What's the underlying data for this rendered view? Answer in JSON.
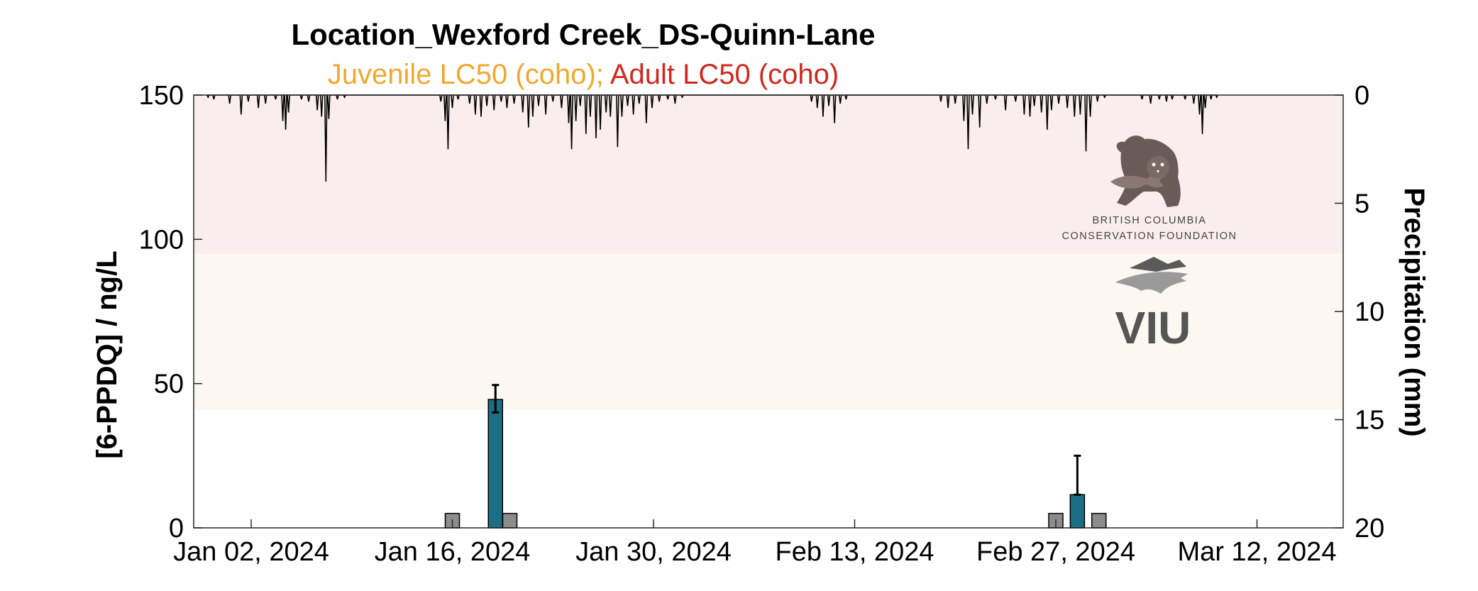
{
  "chart_data": {
    "type": "bar",
    "title": "Location_Wexford Creek_DS-Quinn-Lane",
    "subtitle_parts": [
      {
        "text": "Juvenile LC50 (coho)",
        "color": "#f0a830"
      },
      {
        "text": "; ",
        "color": "#f0a830"
      },
      {
        "text": "Adult LC50 (coho)",
        "color": "#d0281e"
      }
    ],
    "ylabel": "[6-PPDQ] / ng/L",
    "y2label": "Precipitation (mm)",
    "ylim": [
      0,
      150
    ],
    "y2lim": [
      0,
      20
    ],
    "y2_reversed": true,
    "yticks": [
      0,
      50,
      100,
      150
    ],
    "y2ticks": [
      0,
      5,
      10,
      15,
      20
    ],
    "xlim": [
      "2023-12-29",
      "2024-03-18"
    ],
    "xticks": [
      {
        "date": "2024-01-02",
        "label": "Jan 02, 2024"
      },
      {
        "date": "2024-01-16",
        "label": "Jan 16, 2024"
      },
      {
        "date": "2024-01-30",
        "label": "Jan 30, 2024"
      },
      {
        "date": "2024-02-13",
        "label": "Feb 13, 2024"
      },
      {
        "date": "2024-02-27",
        "label": "Feb 27, 2024"
      },
      {
        "date": "2024-03-12",
        "label": "Mar 12, 2024"
      }
    ],
    "bands": [
      {
        "name": "Juvenile LC50 (coho)",
        "from": 41,
        "to": 95,
        "color": "#fcf7f0"
      },
      {
        "name": "Adult LC50 (coho)",
        "from": 95,
        "to": 150,
        "color": "#f9eeed"
      }
    ],
    "bars": [
      {
        "date": "2024-01-16",
        "value": 5,
        "kind": "non-detect",
        "color": "#8c8c8c"
      },
      {
        "date": "2024-01-19",
        "value": 44.5,
        "error_low": 4.5,
        "error_high": 5,
        "kind": "detect",
        "color": "#1a6f85"
      },
      {
        "date": "2024-01-20",
        "value": 5,
        "kind": "non-detect",
        "color": "#8c8c8c"
      },
      {
        "date": "2024-02-27",
        "value": 5,
        "kind": "non-detect",
        "color": "#8c8c8c"
      },
      {
        "date": "2024-02-28.5",
        "value": 11.5,
        "error_low": 0,
        "error_high": 13.5,
        "kind": "detect",
        "color": "#1a6f85"
      },
      {
        "date": "2024-03-01",
        "value": 5,
        "kind": "non-detect",
        "color": "#8c8c8c"
      }
    ],
    "precipitation": {
      "note_series": "hourly precipitation (mm), reversed right axis",
      "events": [
        {
          "day": 1.0,
          "mm": 0.1
        },
        {
          "day": 1.4,
          "mm": 0.2
        },
        {
          "day": 2.5,
          "mm": 0.4
        },
        {
          "day": 3.3,
          "mm": 0.9
        },
        {
          "day": 3.8,
          "mm": 0.3
        },
        {
          "day": 4.5,
          "mm": 0.6
        },
        {
          "day": 5.0,
          "mm": 0.4
        },
        {
          "day": 5.7,
          "mm": 0.2
        },
        {
          "day": 6.2,
          "mm": 1.2
        },
        {
          "day": 6.4,
          "mm": 1.6
        },
        {
          "day": 6.6,
          "mm": 0.8
        },
        {
          "day": 7.5,
          "mm": 0.2
        },
        {
          "day": 8.0,
          "mm": 0.3
        },
        {
          "day": 8.6,
          "mm": 0.7
        },
        {
          "day": 8.9,
          "mm": 1.0
        },
        {
          "day": 9.2,
          "mm": 4.0
        },
        {
          "day": 9.4,
          "mm": 1.1
        },
        {
          "day": 10.0,
          "mm": 0.2
        },
        {
          "day": 10.5,
          "mm": 0.1
        },
        {
          "day": 17.2,
          "mm": 0.3
        },
        {
          "day": 17.5,
          "mm": 1.2
        },
        {
          "day": 17.7,
          "mm": 2.5
        },
        {
          "day": 18.0,
          "mm": 0.6
        },
        {
          "day": 18.4,
          "mm": 0.2
        },
        {
          "day": 19.2,
          "mm": 0.4
        },
        {
          "day": 19.6,
          "mm": 0.9
        },
        {
          "day": 20.0,
          "mm": 1.0
        },
        {
          "day": 20.4,
          "mm": 0.5
        },
        {
          "day": 20.9,
          "mm": 0.7
        },
        {
          "day": 21.4,
          "mm": 0.3
        },
        {
          "day": 21.8,
          "mm": 0.6
        },
        {
          "day": 22.3,
          "mm": 0.4
        },
        {
          "day": 22.9,
          "mm": 0.8
        },
        {
          "day": 23.3,
          "mm": 1.5
        },
        {
          "day": 23.6,
          "mm": 1.0
        },
        {
          "day": 24.0,
          "mm": 0.5
        },
        {
          "day": 24.5,
          "mm": 0.9
        },
        {
          "day": 25.0,
          "mm": 0.3
        },
        {
          "day": 25.6,
          "mm": 0.6
        },
        {
          "day": 26.1,
          "mm": 1.3
        },
        {
          "day": 26.3,
          "mm": 2.5
        },
        {
          "day": 26.6,
          "mm": 1.2
        },
        {
          "day": 26.9,
          "mm": 0.5
        },
        {
          "day": 27.3,
          "mm": 1.8
        },
        {
          "day": 27.6,
          "mm": 1.0
        },
        {
          "day": 28.0,
          "mm": 2.0
        },
        {
          "day": 28.3,
          "mm": 1.6
        },
        {
          "day": 28.7,
          "mm": 0.8
        },
        {
          "day": 29.0,
          "mm": 1.0
        },
        {
          "day": 29.5,
          "mm": 2.4
        },
        {
          "day": 29.8,
          "mm": 1.0
        },
        {
          "day": 30.2,
          "mm": 0.5
        },
        {
          "day": 30.6,
          "mm": 0.9
        },
        {
          "day": 31.0,
          "mm": 0.4
        },
        {
          "day": 31.5,
          "mm": 1.3
        },
        {
          "day": 31.9,
          "mm": 0.6
        },
        {
          "day": 32.4,
          "mm": 0.3
        },
        {
          "day": 33.0,
          "mm": 0.2
        },
        {
          "day": 33.5,
          "mm": 0.4
        },
        {
          "day": 34.0,
          "mm": 0.1
        },
        {
          "day": 43.0,
          "mm": 0.3
        },
        {
          "day": 43.4,
          "mm": 0.6
        },
        {
          "day": 43.8,
          "mm": 1.0
        },
        {
          "day": 44.2,
          "mm": 0.5
        },
        {
          "day": 44.6,
          "mm": 1.3
        },
        {
          "day": 45.0,
          "mm": 0.4
        },
        {
          "day": 45.4,
          "mm": 0.2
        },
        {
          "day": 52.0,
          "mm": 0.3
        },
        {
          "day": 52.5,
          "mm": 0.6
        },
        {
          "day": 53.0,
          "mm": 0.4
        },
        {
          "day": 53.6,
          "mm": 1.2
        },
        {
          "day": 53.9,
          "mm": 2.5
        },
        {
          "day": 54.2,
          "mm": 0.9
        },
        {
          "day": 54.7,
          "mm": 1.5
        },
        {
          "day": 55.2,
          "mm": 0.4
        },
        {
          "day": 55.8,
          "mm": 0.2
        },
        {
          "day": 56.5,
          "mm": 0.7
        },
        {
          "day": 57.2,
          "mm": 0.3
        },
        {
          "day": 57.8,
          "mm": 0.9
        },
        {
          "day": 58.2,
          "mm": 1.0
        },
        {
          "day": 58.5,
          "mm": 0.5
        },
        {
          "day": 59.0,
          "mm": 0.8
        },
        {
          "day": 59.4,
          "mm": 1.6
        },
        {
          "day": 59.7,
          "mm": 0.7
        },
        {
          "day": 60.2,
          "mm": 0.4
        },
        {
          "day": 60.8,
          "mm": 0.6
        },
        {
          "day": 61.3,
          "mm": 1.0
        },
        {
          "day": 61.7,
          "mm": 0.9
        },
        {
          "day": 62.1,
          "mm": 2.6
        },
        {
          "day": 62.4,
          "mm": 1.0
        },
        {
          "day": 62.9,
          "mm": 0.3
        },
        {
          "day": 63.4,
          "mm": 0.1
        },
        {
          "day": 66.0,
          "mm": 0.2
        },
        {
          "day": 66.6,
          "mm": 0.4
        },
        {
          "day": 67.2,
          "mm": 0.2
        },
        {
          "day": 67.7,
          "mm": 0.3
        },
        {
          "day": 68.1,
          "mm": 0.2
        },
        {
          "day": 69.0,
          "mm": 0.2
        },
        {
          "day": 69.6,
          "mm": 0.4
        },
        {
          "day": 70.0,
          "mm": 0.9
        },
        {
          "day": 70.2,
          "mm": 1.8
        },
        {
          "day": 70.4,
          "mm": 0.6
        },
        {
          "day": 70.8,
          "mm": 0.2
        },
        {
          "day": 71.2,
          "mm": 0.1
        }
      ]
    },
    "logos": [
      {
        "name": "British Columbia Conservation Foundation",
        "lines": [
          "BRITISH COLUMBIA",
          "CONSERVATION FOUNDATION"
        ]
      },
      {
        "name": "VIU",
        "text": "VIU"
      }
    ]
  }
}
